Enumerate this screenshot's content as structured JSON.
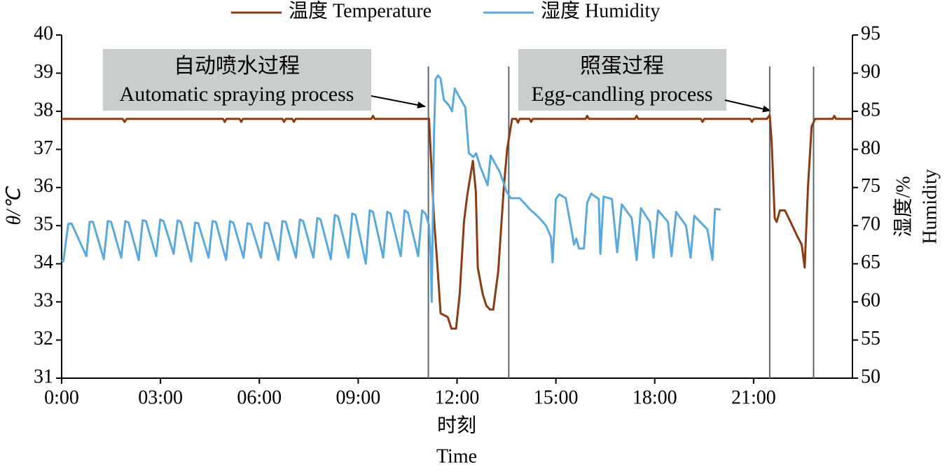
{
  "chart_data": {
    "type": "line",
    "xlabel": [
      "时刻",
      "Time"
    ],
    "ylabel": "θ/℃",
    "y2label": [
      "湿度/%",
      "Humidity"
    ],
    "xlim": [
      0,
      24
    ],
    "xticks": [
      {
        "value": 0,
        "label": "0:00"
      },
      {
        "value": 3,
        "label": "03:00"
      },
      {
        "value": 6,
        "label": "06:00"
      },
      {
        "value": 9,
        "label": "09:00"
      },
      {
        "value": 12,
        "label": "12:00"
      },
      {
        "value": 15,
        "label": "15:00"
      },
      {
        "value": 18,
        "label": "18:00"
      },
      {
        "value": 21,
        "label": "21:00"
      }
    ],
    "ylim": [
      31,
      40
    ],
    "yticks": [
      31,
      32,
      33,
      34,
      35,
      36,
      37,
      38,
      39,
      40
    ],
    "y2lim": [
      50,
      95
    ],
    "y2ticks": [
      50,
      55,
      60,
      65,
      70,
      75,
      80,
      85,
      90,
      95
    ],
    "legend": "top",
    "vlines": [
      11.13,
      13.57,
      21.49,
      22.82
    ],
    "annotations": [
      {
        "lines": [
          "自动喷水过程",
          "Automatic spraying process"
        ]
      },
      {
        "lines": [
          "照蛋过程",
          "Egg-candling process"
        ]
      }
    ],
    "series": [
      {
        "name": "温度 Temperature",
        "color": "#8b3a12",
        "x": [
          0,
          1.85,
          1.91,
          1.97,
          4.9,
          4.95,
          5.0,
          5.4,
          5.45,
          5.5,
          6.7,
          6.75,
          6.8,
          7.0,
          7.05,
          7.1,
          9.4,
          9.45,
          9.5,
          11.15,
          11.3,
          11.4,
          11.5,
          11.72,
          11.83,
          11.97,
          12.08,
          12.21,
          12.31,
          12.48,
          12.57,
          12.63,
          12.78,
          12.89,
          13.0,
          13.1,
          13.25,
          13.42,
          13.52,
          13.67,
          13.8,
          13.85,
          13.9,
          14.2,
          14.25,
          14.3,
          15.9,
          15.95,
          16.0,
          17.4,
          17.45,
          17.5,
          19.4,
          19.45,
          19.5,
          20.9,
          20.95,
          21.0,
          21.4,
          21.49,
          21.55,
          21.64,
          21.7,
          21.8,
          21.95,
          22.12,
          22.34,
          22.46,
          22.55,
          22.65,
          22.76,
          22.87,
          23.4,
          23.45,
          23.5,
          24
        ],
        "values": [
          37.8,
          37.8,
          37.72,
          37.8,
          37.8,
          37.72,
          37.8,
          37.8,
          37.72,
          37.8,
          37.8,
          37.72,
          37.8,
          37.8,
          37.72,
          37.8,
          37.8,
          37.88,
          37.8,
          37.8,
          35.2,
          34.0,
          32.7,
          32.6,
          32.3,
          32.3,
          33.2,
          35.1,
          35.8,
          36.7,
          35.9,
          33.9,
          33.2,
          32.9,
          32.8,
          32.8,
          33.8,
          36.0,
          37.0,
          37.8,
          37.8,
          37.7,
          37.8,
          37.8,
          37.72,
          37.8,
          37.8,
          37.88,
          37.8,
          37.8,
          37.88,
          37.8,
          37.8,
          37.72,
          37.8,
          37.8,
          37.72,
          37.8,
          37.8,
          37.9,
          37.2,
          35.2,
          35.1,
          35.4,
          35.4,
          35.1,
          34.7,
          34.5,
          33.9,
          36.0,
          37.6,
          37.8,
          37.8,
          37.88,
          37.8,
          37.8
        ]
      },
      {
        "name": "湿度 Humidity",
        "color": "#5aa9de",
        "axis": "y2",
        "x": [
          0,
          0.05,
          0.2,
          0.3,
          0.75,
          0.85,
          0.95,
          1.28,
          1.4,
          1.5,
          1.81,
          1.93,
          2.03,
          2.34,
          2.46,
          2.56,
          2.87,
          2.99,
          3.09,
          3.4,
          3.52,
          3.62,
          3.93,
          4.05,
          4.15,
          4.46,
          4.58,
          4.68,
          4.99,
          5.11,
          5.21,
          5.52,
          5.64,
          5.74,
          6.05,
          6.17,
          6.27,
          6.58,
          6.7,
          6.8,
          7.11,
          7.23,
          7.33,
          7.64,
          7.76,
          7.86,
          8.17,
          8.29,
          8.39,
          8.7,
          8.82,
          8.92,
          9.23,
          9.35,
          9.45,
          9.76,
          9.88,
          9.98,
          10.29,
          10.41,
          10.51,
          10.82,
          10.94,
          11.05,
          11.15,
          11.2,
          11.23,
          11.3,
          11.35,
          11.42,
          11.5,
          11.6,
          11.75,
          11.85,
          11.93,
          12.05,
          12.25,
          12.36,
          12.5,
          12.58,
          12.7,
          12.93,
          13.02,
          13.3,
          13.5,
          13.63,
          13.9,
          14.2,
          14.5,
          14.7,
          14.85,
          14.9,
          15.0,
          15.1,
          15.3,
          15.45,
          15.55,
          15.62,
          15.7,
          15.85,
          15.95,
          16.07,
          16.3,
          16.35,
          16.45,
          16.7,
          16.86,
          17.0,
          17.3,
          17.45,
          17.58,
          17.85,
          17.96,
          18.1,
          18.4,
          18.51,
          18.65,
          18.95,
          19.09,
          19.2,
          19.6,
          19.75,
          19.83,
          20.0
        ],
        "values": [
          65.5,
          65.3,
          70.2,
          70.3,
          66,
          70.5,
          70.5,
          65.6,
          70.6,
          70.5,
          65.8,
          70.6,
          70.4,
          65.5,
          70.7,
          70.6,
          66,
          70.8,
          70.6,
          66.3,
          70.7,
          70.5,
          65.3,
          70.4,
          70.3,
          65.8,
          70.6,
          70.5,
          65.5,
          70.6,
          70.4,
          65.8,
          70.3,
          70.2,
          65.8,
          70.4,
          70.3,
          65.5,
          70.6,
          70.5,
          65.8,
          70.8,
          70.6,
          65.8,
          71,
          70.8,
          65.6,
          71.4,
          71.2,
          65.8,
          71.6,
          71.4,
          65,
          72,
          71.8,
          65.8,
          71.8,
          71.6,
          66,
          72,
          71.7,
          66,
          72,
          71.5,
          70,
          66,
          60,
          82,
          89.2,
          89.7,
          89.3,
          86.5,
          85.8,
          85,
          88,
          87,
          85.5,
          79.5,
          79,
          79.5,
          77.8,
          75.3,
          79.2,
          77,
          74.5,
          73.6,
          73.6,
          72.2,
          71,
          70,
          68.5,
          65.2,
          73.5,
          74.1,
          73.6,
          70,
          67.5,
          68.3,
          67,
          67,
          73,
          74.2,
          73.5,
          66.3,
          73.8,
          73.5,
          66.5,
          72.8,
          71,
          65.5,
          72.3,
          70.5,
          65.8,
          72,
          70.5,
          66,
          71.8,
          70,
          65.8,
          71.3,
          69.5,
          65.5,
          72.2,
          72.1
        ]
      }
    ]
  }
}
